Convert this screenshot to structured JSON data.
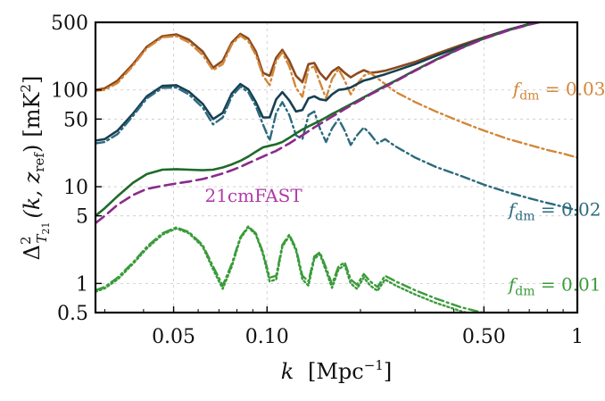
{
  "chart_data": {
    "type": "line",
    "title": "",
    "xscale": "log",
    "yscale": "log",
    "xlim": [
      0.028,
      1.0
    ],
    "ylim": [
      0.5,
      500
    ],
    "grid": true,
    "xlabel": {
      "main": "k",
      "unit": "[Mpc",
      "unit_sup": "−1",
      "unit_close": "]"
    },
    "ylabel": {
      "delta": "Δ",
      "sup": "2",
      "sub": "T",
      "subsub": "21",
      "args": "(k, z",
      "args_sub": "ref",
      "args_close": ")",
      "unit": "[mK",
      "unit_sup": "2",
      "unit_close": "]"
    },
    "xticks": [
      {
        "value": 0.05,
        "label": "0.05"
      },
      {
        "value": 0.1,
        "label": "0.10"
      },
      {
        "value": 0.5,
        "label": "0.50"
      },
      {
        "value": 1.0,
        "label": "1"
      }
    ],
    "yticks": [
      {
        "value": 0.5,
        "label": "0.5"
      },
      {
        "value": 1,
        "label": "1"
      },
      {
        "value": 5,
        "label": "5"
      },
      {
        "value": 10,
        "label": "10"
      },
      {
        "value": 50,
        "label": "50"
      },
      {
        "value": 100,
        "label": "100"
      },
      {
        "value": 500,
        "label": "500"
      }
    ],
    "annotations": [
      {
        "base": "f",
        "sub": "dm",
        "rest": " = 0.03",
        "color": "#d2873a",
        "anchor": [
          0.62,
          88
        ]
      },
      {
        "base": "f",
        "sub": "dm",
        "rest": " = 0.02",
        "color": "#2c6a7e",
        "anchor": [
          0.6,
          5.0
        ]
      },
      {
        "base": "f",
        "sub": "dm",
        "rest": " = 0.01",
        "color": "#3a9b3a",
        "anchor": [
          0.6,
          0.84
        ]
      },
      {
        "text": "21cmFAST",
        "color": "#b03aa8",
        "anchor": [
          0.063,
          7.0
        ]
      }
    ],
    "series": [
      {
        "color": "#8b4a1c",
        "dash": "solid",
        "width": 2.6,
        "x": [
          0.028,
          0.03,
          0.033,
          0.037,
          0.041,
          0.046,
          0.051,
          0.056,
          0.062,
          0.067,
          0.072,
          0.077,
          0.082,
          0.087,
          0.092,
          0.097,
          0.102,
          0.107,
          0.112,
          0.118,
          0.124,
          0.13,
          0.136,
          0.142,
          0.148,
          0.155,
          0.162,
          0.17,
          0.178,
          0.186,
          0.195,
          0.205,
          0.215,
          0.227,
          0.24,
          0.26,
          0.3,
          0.35,
          0.42,
          0.5,
          0.6,
          0.7,
          0.8,
          0.9,
          1.0
        ],
        "y": [
          100,
          104,
          125,
          185,
          280,
          360,
          375,
          330,
          250,
          170,
          200,
          310,
          380,
          340,
          250,
          150,
          140,
          215,
          260,
          200,
          140,
          120,
          185,
          190,
          150,
          128,
          155,
          172,
          150,
          135,
          148,
          160,
          150,
          153,
          158,
          170,
          195,
          235,
          290,
          350,
          420,
          480,
          530,
          560,
          600
        ]
      },
      {
        "color": "#d2873a",
        "dash": "dashdot",
        "width": 2.4,
        "x": [
          0.028,
          0.03,
          0.033,
          0.037,
          0.041,
          0.046,
          0.051,
          0.056,
          0.062,
          0.067,
          0.072,
          0.077,
          0.082,
          0.087,
          0.092,
          0.097,
          0.102,
          0.107,
          0.112,
          0.118,
          0.124,
          0.13,
          0.136,
          0.142,
          0.148,
          0.155,
          0.162,
          0.17,
          0.178,
          0.186,
          0.195,
          0.205,
          0.215,
          0.227,
          0.24,
          0.26,
          0.3,
          0.35,
          0.42,
          0.5,
          0.6,
          0.7,
          0.8,
          0.9,
          1.0
        ],
        "y": [
          98,
          100,
          118,
          178,
          270,
          350,
          360,
          310,
          230,
          160,
          185,
          295,
          365,
          320,
          230,
          140,
          112,
          200,
          245,
          175,
          105,
          85,
          165,
          175,
          120,
          82,
          130,
          165,
          125,
          90,
          115,
          140,
          150,
          132,
          115,
          95,
          75,
          60,
          47,
          38,
          31,
          27,
          24,
          22,
          20
        ]
      },
      {
        "color": "#173f52",
        "dash": "solid",
        "width": 2.6,
        "x": [
          0.028,
          0.03,
          0.033,
          0.037,
          0.041,
          0.046,
          0.051,
          0.056,
          0.062,
          0.067,
          0.072,
          0.077,
          0.082,
          0.087,
          0.092,
          0.097,
          0.102,
          0.107,
          0.112,
          0.118,
          0.124,
          0.13,
          0.136,
          0.142,
          0.148,
          0.155,
          0.162,
          0.17,
          0.178,
          0.186,
          0.195,
          0.205,
          0.215,
          0.227,
          0.24,
          0.26,
          0.3,
          0.35,
          0.42,
          0.5,
          0.6,
          0.7,
          0.8,
          0.9,
          1.0
        ],
        "y": [
          30,
          31,
          38,
          57,
          86,
          110,
          112,
          96,
          72,
          50,
          58,
          92,
          115,
          102,
          75,
          52,
          52,
          80,
          95,
          78,
          60,
          62,
          82,
          86,
          80,
          78,
          90,
          100,
          102,
          106,
          115,
          125,
          130,
          138,
          145,
          158,
          185,
          225,
          280,
          345,
          420,
          480,
          530,
          565,
          600
        ]
      },
      {
        "color": "#2c6a7e",
        "dash": "dashdot",
        "width": 2.4,
        "x": [
          0.028,
          0.03,
          0.033,
          0.037,
          0.041,
          0.046,
          0.051,
          0.056,
          0.062,
          0.067,
          0.072,
          0.077,
          0.082,
          0.087,
          0.092,
          0.097,
          0.102,
          0.107,
          0.112,
          0.118,
          0.124,
          0.13,
          0.136,
          0.142,
          0.148,
          0.155,
          0.162,
          0.17,
          0.178,
          0.186,
          0.195,
          0.205,
          0.215,
          0.227,
          0.24,
          0.26,
          0.3,
          0.35,
          0.42,
          0.5,
          0.6,
          0.7,
          0.8,
          0.9,
          1.0
        ],
        "y": [
          28,
          29,
          35,
          54,
          82,
          105,
          106,
          90,
          66,
          44,
          52,
          86,
          108,
          95,
          68,
          44,
          30,
          58,
          75,
          55,
          34,
          31,
          55,
          60,
          40,
          29,
          40,
          50,
          38,
          27,
          34,
          41,
          35,
          28,
          31,
          26,
          20,
          16,
          13,
          10.5,
          8.7,
          7.6,
          6.8,
          6.2,
          5.7
        ]
      },
      {
        "color": "#1e6b2a",
        "dash": "solid",
        "width": 2.6,
        "x": [
          0.028,
          0.03,
          0.033,
          0.037,
          0.041,
          0.046,
          0.051,
          0.056,
          0.062,
          0.067,
          0.072,
          0.077,
          0.082,
          0.087,
          0.092,
          0.097,
          0.102,
          0.107,
          0.112,
          0.118,
          0.124,
          0.13,
          0.136,
          0.142,
          0.148,
          0.155,
          0.162,
          0.17,
          0.178,
          0.186,
          0.195,
          0.205,
          0.215,
          0.227,
          0.24,
          0.26,
          0.3,
          0.35,
          0.42,
          0.5,
          0.6,
          0.7,
          0.8,
          0.9,
          1.0
        ],
        "y": [
          5.0,
          6.0,
          8.0,
          11.0,
          13.5,
          15.0,
          15.2,
          15.0,
          14.8,
          15.0,
          15.8,
          17.0,
          18.5,
          20.5,
          23.0,
          25.5,
          26.5,
          27.5,
          29.0,
          32.0,
          35.5,
          39.0,
          42.0,
          45.0,
          48.0,
          52.0,
          56.5,
          61.0,
          66.0,
          71.0,
          77.0,
          84.0,
          91.0,
          100.0,
          110.0,
          125.0,
          160.0,
          205.0,
          270.0,
          340.0,
          415.0,
          475.0,
          525.0,
          560.0,
          600.0
        ]
      },
      {
        "color": "#8a2a8a",
        "dash": "dashed",
        "width": 2.6,
        "x": [
          0.028,
          0.03,
          0.033,
          0.037,
          0.041,
          0.046,
          0.051,
          0.056,
          0.062,
          0.067,
          0.072,
          0.077,
          0.082,
          0.087,
          0.092,
          0.097,
          0.102,
          0.107,
          0.112,
          0.118,
          0.124,
          0.13,
          0.136,
          0.142,
          0.148,
          0.155,
          0.162,
          0.17,
          0.178,
          0.186,
          0.195,
          0.205,
          0.215,
          0.227,
          0.24,
          0.26,
          0.3,
          0.35,
          0.42,
          0.5,
          0.6,
          0.7,
          0.8,
          0.9,
          1.0
        ],
        "y": [
          4.2,
          5.0,
          6.5,
          8.2,
          9.5,
          10.2,
          10.8,
          11.3,
          12.0,
          12.8,
          13.7,
          14.8,
          16.0,
          17.5,
          19.0,
          20.5,
          22.0,
          23.5,
          25.5,
          28.0,
          31.0,
          34.0,
          37.5,
          41.0,
          44.5,
          48.5,
          53.0,
          58.0,
          63.5,
          69.0,
          75.0,
          82.0,
          89.5,
          98.0,
          108.0,
          123.0,
          158.0,
          203.0,
          268.0,
          338.0,
          413.0,
          473.0,
          523.0,
          558.0,
          598.0
        ]
      },
      {
        "color": "#3a9b3a",
        "dash": "dashdot",
        "width": 2.4,
        "x": [
          0.028,
          0.03,
          0.033,
          0.037,
          0.041,
          0.046,
          0.051,
          0.056,
          0.062,
          0.067,
          0.072,
          0.077,
          0.082,
          0.087,
          0.092,
          0.097,
          0.102,
          0.107,
          0.112,
          0.118,
          0.124,
          0.13,
          0.136,
          0.142,
          0.148,
          0.155,
          0.162,
          0.17,
          0.178,
          0.186,
          0.195,
          0.205,
          0.215,
          0.227,
          0.24,
          0.26,
          0.3,
          0.35,
          0.42,
          0.47,
          0.52
        ],
        "y": [
          0.85,
          0.92,
          1.15,
          1.65,
          2.4,
          3.3,
          3.8,
          3.4,
          2.5,
          1.5,
          0.95,
          1.6,
          3.0,
          3.9,
          3.3,
          2.1,
          1.15,
          1.2,
          2.5,
          3.2,
          2.3,
          1.2,
          1.05,
          1.9,
          2.1,
          1.45,
          0.98,
          1.5,
          1.65,
          1.1,
          0.97,
          1.25,
          1.05,
          0.92,
          1.2,
          1.05,
          0.85,
          0.7,
          0.57,
          0.52,
          0.48
        ]
      },
      {
        "color": "#3a9b3a",
        "dash": "dotted",
        "width": 2.4,
        "x": [
          0.028,
          0.03,
          0.033,
          0.037,
          0.041,
          0.046,
          0.051,
          0.056,
          0.062,
          0.067,
          0.072,
          0.077,
          0.082,
          0.087,
          0.092,
          0.097,
          0.102,
          0.107,
          0.112,
          0.118,
          0.124,
          0.13,
          0.136,
          0.142,
          0.148,
          0.155,
          0.162,
          0.17,
          0.178,
          0.186,
          0.195,
          0.205,
          0.215,
          0.227,
          0.24,
          0.26,
          0.3,
          0.35,
          0.42,
          0.47,
          0.52
        ],
        "y": [
          0.82,
          0.89,
          1.1,
          1.6,
          2.3,
          3.2,
          3.7,
          3.3,
          2.4,
          1.4,
          0.88,
          1.5,
          2.9,
          3.8,
          3.2,
          2.0,
          1.05,
          1.1,
          2.4,
          3.1,
          2.2,
          1.1,
          0.95,
          1.8,
          2.0,
          1.35,
          0.9,
          1.4,
          1.55,
          1.0,
          0.88,
          1.15,
          0.95,
          0.84,
          1.1,
          0.95,
          0.77,
          0.63,
          0.52,
          0.47,
          0.44
        ]
      }
    ]
  }
}
